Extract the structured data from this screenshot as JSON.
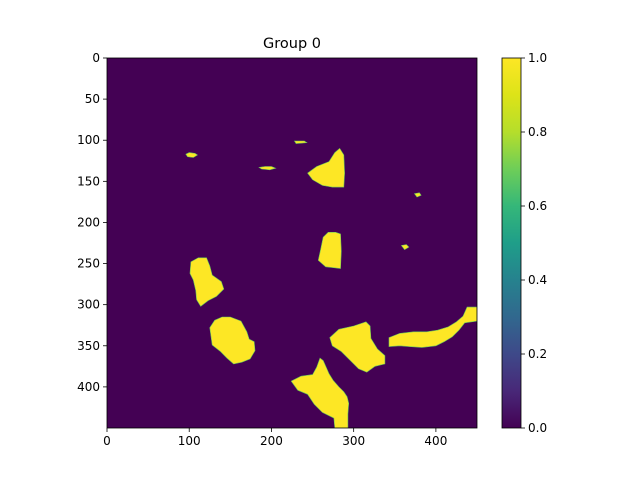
{
  "chart_data": {
    "type": "heatmap",
    "title": "Group 0",
    "xlabel": "",
    "ylabel": "",
    "x_range": [
      0,
      450
    ],
    "y_range": [
      0,
      450
    ],
    "y_inverted": true,
    "x_ticks": [
      0,
      100,
      200,
      300,
      400
    ],
    "y_ticks": [
      0,
      50,
      100,
      150,
      200,
      250,
      300,
      350,
      400
    ],
    "colormap": "viridis",
    "value_range": [
      0,
      1
    ],
    "background_value": 0,
    "colors": {
      "low": "#440154",
      "high": "#fde725"
    },
    "colorbar": {
      "ticks": [
        "0.0",
        "0.2",
        "0.4",
        "0.6",
        "0.8",
        "1.0"
      ],
      "tick_values": [
        0.0,
        0.2,
        0.4,
        0.6,
        0.8,
        1.0
      ]
    },
    "regions": [
      {
        "name": "blob-small-100-117",
        "value": 1,
        "points": [
          [
            96,
            117
          ],
          [
            100,
            115
          ],
          [
            107,
            116
          ],
          [
            110,
            118
          ],
          [
            105,
            121
          ],
          [
            98,
            120
          ]
        ]
      },
      {
        "name": "blob-small-195-133",
        "value": 1,
        "points": [
          [
            185,
            133
          ],
          [
            192,
            132
          ],
          [
            200,
            132
          ],
          [
            205,
            134
          ],
          [
            198,
            136
          ],
          [
            188,
            135
          ]
        ]
      },
      {
        "name": "blob-small-235-102",
        "value": 1,
        "points": [
          [
            228,
            101
          ],
          [
            240,
            101
          ],
          [
            243,
            103
          ],
          [
            230,
            104
          ]
        ]
      },
      {
        "name": "blob-275-138",
        "value": 1,
        "points": [
          [
            244,
            140
          ],
          [
            255,
            132
          ],
          [
            270,
            126
          ],
          [
            277,
            115
          ],
          [
            283,
            110
          ],
          [
            288,
            118
          ],
          [
            289,
            140
          ],
          [
            288,
            157
          ],
          [
            274,
            157
          ],
          [
            262,
            155
          ],
          [
            250,
            148
          ]
        ]
      },
      {
        "name": "blob-small-378-166",
        "value": 1,
        "points": [
          [
            374,
            165
          ],
          [
            380,
            164
          ],
          [
            382,
            167
          ],
          [
            377,
            169
          ]
        ]
      },
      {
        "name": "blob-small-362-230",
        "value": 1,
        "points": [
          [
            358,
            228
          ],
          [
            364,
            227
          ],
          [
            367,
            230
          ],
          [
            362,
            233
          ]
        ]
      },
      {
        "name": "blob-270-232",
        "value": 1,
        "points": [
          [
            263,
            218
          ],
          [
            269,
            212
          ],
          [
            278,
            212
          ],
          [
            284,
            214
          ],
          [
            285,
            235
          ],
          [
            284,
            256
          ],
          [
            276,
            255
          ],
          [
            266,
            254
          ],
          [
            257,
            246
          ],
          [
            260,
            232
          ]
        ]
      },
      {
        "name": "blob-117-268",
        "value": 1,
        "points": [
          [
            102,
            248
          ],
          [
            111,
            243
          ],
          [
            121,
            243
          ],
          [
            125,
            253
          ],
          [
            128,
            264
          ],
          [
            139,
            272
          ],
          [
            142,
            281
          ],
          [
            133,
            290
          ],
          [
            123,
            295
          ],
          [
            114,
            302
          ],
          [
            109,
            294
          ],
          [
            108,
            283
          ],
          [
            105,
            270
          ],
          [
            101,
            262
          ]
        ]
      },
      {
        "name": "blob-150-340",
        "value": 1,
        "points": [
          [
            125,
            328
          ],
          [
            131,
            319
          ],
          [
            140,
            315
          ],
          [
            150,
            315
          ],
          [
            163,
            320
          ],
          [
            170,
            333
          ],
          [
            173,
            342
          ],
          [
            179,
            345
          ],
          [
            180,
            356
          ],
          [
            174,
            366
          ],
          [
            164,
            370
          ],
          [
            154,
            372
          ],
          [
            146,
            365
          ],
          [
            138,
            357
          ],
          [
            128,
            349
          ]
        ]
      },
      {
        "name": "blob-310-350",
        "value": 1,
        "points": [
          [
            271,
            340
          ],
          [
            282,
            330
          ],
          [
            300,
            326
          ],
          [
            315,
            321
          ],
          [
            320,
            326
          ],
          [
            321,
            341
          ],
          [
            329,
            354
          ],
          [
            338,
            362
          ],
          [
            338,
            372
          ],
          [
            326,
            375
          ],
          [
            316,
            382
          ],
          [
            306,
            378
          ],
          [
            296,
            368
          ],
          [
            285,
            357
          ],
          [
            274,
            350
          ]
        ]
      },
      {
        "name": "blob-410-334",
        "value": 1,
        "points": [
          [
            343,
            340
          ],
          [
            356,
            335
          ],
          [
            373,
            333
          ],
          [
            389,
            333
          ],
          [
            402,
            331
          ],
          [
            415,
            327
          ],
          [
            425,
            321
          ],
          [
            433,
            314
          ],
          [
            438,
            303
          ],
          [
            450,
            303
          ],
          [
            450,
            320
          ],
          [
            435,
            322
          ],
          [
            428,
            331
          ],
          [
            420,
            339
          ],
          [
            410,
            345
          ],
          [
            400,
            350
          ],
          [
            383,
            352
          ],
          [
            368,
            351
          ],
          [
            356,
            350
          ],
          [
            343,
            351
          ]
        ]
      },
      {
        "name": "blob-275-405",
        "value": 1,
        "points": [
          [
            224,
            393
          ],
          [
            236,
            387
          ],
          [
            250,
            385
          ],
          [
            255,
            376
          ],
          [
            259,
            365
          ],
          [
            263,
            368
          ],
          [
            267,
            377
          ],
          [
            270,
            384
          ],
          [
            275,
            392
          ],
          [
            282,
            400
          ],
          [
            288,
            406
          ],
          [
            292,
            412
          ],
          [
            294,
            420
          ],
          [
            293,
            433
          ],
          [
            293,
            450
          ],
          [
            277,
            450
          ],
          [
            276,
            438
          ],
          [
            262,
            431
          ],
          [
            252,
            421
          ],
          [
            244,
            409
          ],
          [
            232,
            404
          ]
        ]
      }
    ]
  }
}
